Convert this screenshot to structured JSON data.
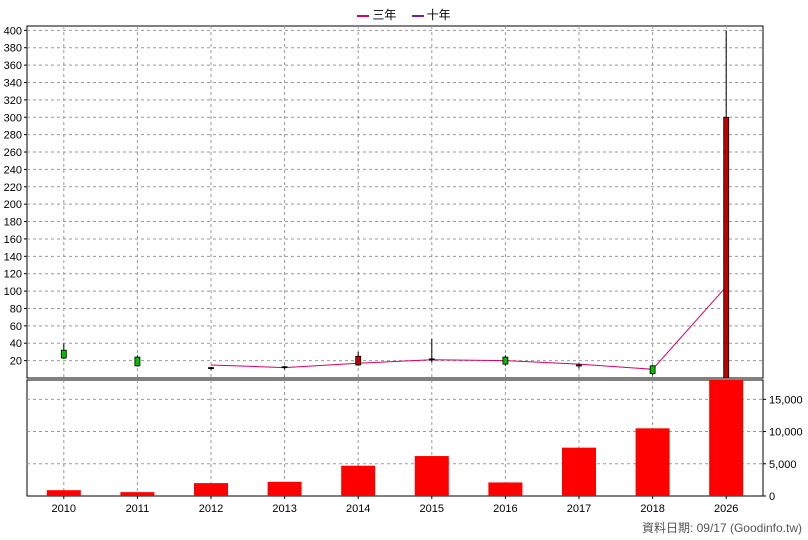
{
  "legend": {
    "items": [
      {
        "label": "三年",
        "color": "#d6006b"
      },
      {
        "label": "十年",
        "color": "#7a1fa2"
      }
    ]
  },
  "footer": {
    "text": "資料日期: 09/17 (Goodinfo.tw)"
  },
  "colors": {
    "candle_up": "#00c000",
    "candle_down": "#c00000",
    "volume_bar": "#ff0000",
    "ma_line": "#d6006b"
  },
  "chart_data": [
    {
      "type": "candlestick",
      "categories": [
        "2010",
        "2011",
        "2012",
        "2013",
        "2014",
        "2015",
        "2016",
        "2017",
        "2018",
        "2026"
      ],
      "ylim": [
        0,
        405
      ],
      "yticks": [
        20,
        40,
        60,
        80,
        100,
        120,
        140,
        160,
        180,
        200,
        220,
        240,
        260,
        280,
        300,
        320,
        340,
        360,
        380,
        400
      ],
      "grid": true,
      "candles": [
        {
          "x": "2010",
          "open": 23,
          "close": 32,
          "high": 40,
          "low": 22,
          "dir": "up"
        },
        {
          "x": "2011",
          "open": 14,
          "close": 24,
          "high": 26,
          "low": 13,
          "dir": "up"
        },
        {
          "x": "2012",
          "open": 12,
          "close": 12,
          "high": 13,
          "low": 9,
          "dir": "flat"
        },
        {
          "x": "2013",
          "open": 13,
          "close": 12,
          "high": 14,
          "low": 10,
          "dir": "flat"
        },
        {
          "x": "2014",
          "open": 25,
          "close": 15,
          "high": 30,
          "low": 14,
          "dir": "down"
        },
        {
          "x": "2015",
          "open": 22,
          "close": 22,
          "high": 45,
          "low": 18,
          "dir": "flat"
        },
        {
          "x": "2016",
          "open": 16,
          "close": 24,
          "high": 26,
          "low": 14,
          "dir": "up"
        },
        {
          "x": "2017",
          "open": 15,
          "close": 14,
          "high": 17,
          "low": 11,
          "dir": "flat"
        },
        {
          "x": "2018",
          "open": 5,
          "close": 14,
          "high": 15,
          "low": 3,
          "dir": "up"
        },
        {
          "x": "2026",
          "open": 300,
          "close": 0,
          "high": 400,
          "low": 0,
          "dir": "down"
        }
      ],
      "lines": [
        {
          "name": "三年",
          "points": [
            null,
            null,
            15,
            12,
            17,
            21,
            20,
            16,
            10,
            105
          ]
        }
      ]
    },
    {
      "type": "bar",
      "categories": [
        "2010",
        "2011",
        "2012",
        "2013",
        "2014",
        "2015",
        "2016",
        "2017",
        "2018",
        "2026"
      ],
      "values": [
        900,
        600,
        2000,
        2200,
        4700,
        6200,
        2100,
        7500,
        10500,
        18000
      ],
      "ylim": [
        0,
        18000
      ],
      "yticks": [
        0,
        5000,
        10000,
        15000
      ],
      "ytick_labels": [
        "0",
        "5,000",
        "10,000",
        "15,000"
      ],
      "grid": true
    }
  ]
}
